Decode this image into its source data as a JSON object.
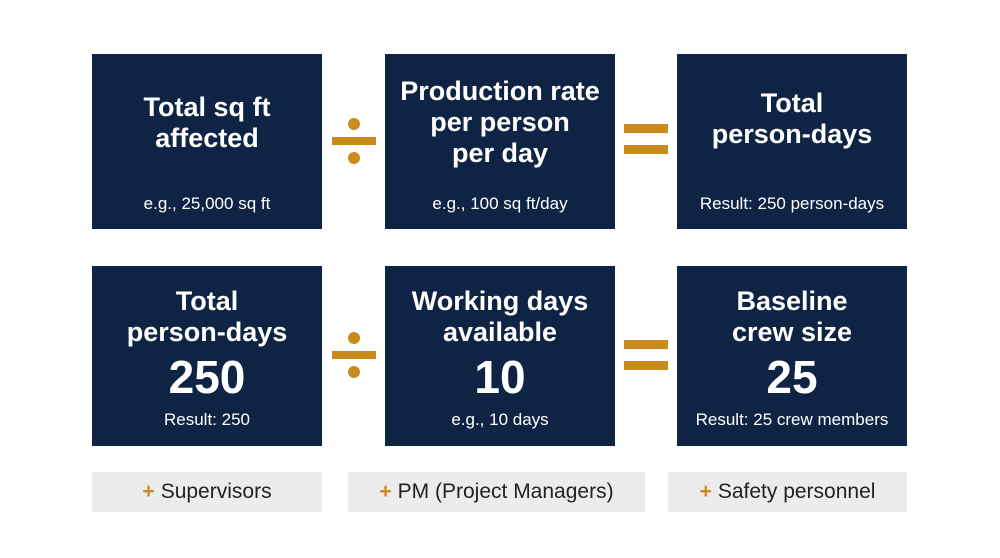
{
  "colors": {
    "box": "#0f2444",
    "operator": "#c98a1e",
    "tag_bg": "#ececec"
  },
  "row1": {
    "box1": {
      "title_line1": "Total sq ft",
      "title_line2": "affected",
      "example": "e.g., 25,000 sq ft"
    },
    "operator1": "divide-icon",
    "box2": {
      "title_line1": "Production rate",
      "title_line2": "per person",
      "title_line3": "per day",
      "example": "e.g., 100 sq ft/day"
    },
    "operator2": "equals-icon",
    "box3": {
      "title_line1": "Total",
      "title_line2": "person-days",
      "result": "Result: 250 person-days"
    }
  },
  "row2": {
    "box1": {
      "title_line1": "Total",
      "title_line2": "person-days",
      "value": "250",
      "result": "Result: 250"
    },
    "operator1": "divide-icon",
    "box2": {
      "title_line1": "Working days",
      "title_line2": "available",
      "value": "10",
      "example": "e.g., 10 days"
    },
    "operator2": "equals-icon",
    "box3": {
      "title_line1": "Baseline",
      "title_line2": "crew size",
      "value": "25",
      "result": "Result: 25 crew members"
    }
  },
  "additions": [
    {
      "plus": "+",
      "label": "Supervisors"
    },
    {
      "plus": "+",
      "label": "PM (Project Managers)"
    },
    {
      "plus": "+",
      "label": "Safety personnel"
    }
  ]
}
